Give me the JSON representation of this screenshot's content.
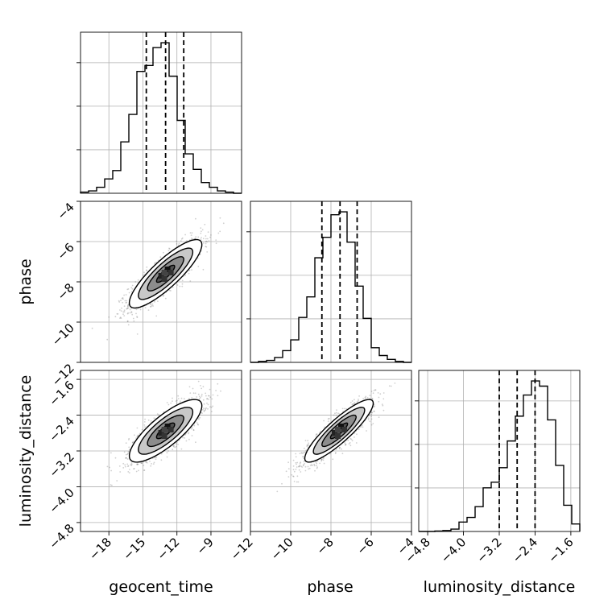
{
  "chart_data": {
    "type": "corner",
    "title": "",
    "parameters": [
      {
        "name": "geocent_time",
        "range": [
          -20.5,
          -6.3
        ],
        "ticks": [
          -18,
          -15,
          -12,
          -9
        ],
        "tick_labels": [
          "−18",
          "−15",
          "−12",
          "−9"
        ],
        "quantiles": [
          -14.7,
          -13.0,
          -11.4
        ],
        "histogram": {
          "bin_edges": [
            -20.5,
            -19.79,
            -19.08,
            -18.37,
            -17.66,
            -16.95,
            -16.24,
            -15.53,
            -14.82,
            -14.11,
            -13.4,
            -12.69,
            -11.98,
            -11.27,
            -10.56,
            -9.85,
            -9.14,
            -8.43,
            -7.72,
            -7.01,
            -6.3
          ],
          "counts": [
            0.01,
            0.02,
            0.05,
            0.12,
            0.19,
            0.43,
            0.66,
            1.02,
            1.07,
            1.22,
            1.26,
            0.98,
            0.61,
            0.33,
            0.2,
            0.09,
            0.05,
            0.02,
            0.01,
            0.0
          ]
        }
      },
      {
        "name": "phase",
        "range": [
          -12,
          -4
        ],
        "ticks": [
          -12,
          -10,
          -8,
          -6,
          -4
        ],
        "tick_labels": [
          "−12",
          "−10",
          "−8",
          "−6",
          "−4"
        ],
        "quantiles": [
          -8.45,
          -7.55,
          -6.7
        ],
        "histogram": {
          "bin_edges": [
            -12.0,
            -11.6,
            -11.2,
            -10.8,
            -10.4,
            -10.0,
            -9.6,
            -9.2,
            -8.8,
            -8.4,
            -8.0,
            -7.6,
            -7.2,
            -6.8,
            -6.4,
            -6.0,
            -5.6,
            -5.2,
            -4.8,
            -4.4,
            -4.0
          ],
          "counts": [
            0.0,
            0.01,
            0.02,
            0.05,
            0.12,
            0.23,
            0.46,
            0.67,
            1.07,
            1.28,
            1.51,
            1.54,
            1.23,
            0.78,
            0.45,
            0.15,
            0.07,
            0.03,
            0.01,
            0.0
          ]
        }
      },
      {
        "name": "luminosity_distance",
        "range": [
          -5.0,
          -1.4
        ],
        "ticks": [
          -4.8,
          -4.0,
          -3.2,
          -2.4,
          -1.6
        ],
        "tick_labels": [
          "−4.8",
          "−4.0",
          "−3.2",
          "−2.4",
          "−1.6"
        ],
        "quantiles": [
          -3.2,
          -2.8,
          -2.4
        ],
        "histogram": {
          "bin_edges": [
            -5.0,
            -4.82,
            -4.64,
            -4.46,
            -4.28,
            -4.1,
            -3.92,
            -3.74,
            -3.56,
            -3.38,
            -3.2,
            -3.02,
            -2.84,
            -2.66,
            -2.48,
            -2.3,
            -2.12,
            -1.94,
            -1.76,
            -1.58,
            -1.4
          ],
          "counts": [
            0.0,
            0.0,
            0.01,
            0.02,
            0.05,
            0.2,
            0.3,
            0.53,
            0.93,
            1.05,
            1.36,
            1.93,
            2.46,
            2.91,
            3.21,
            3.1,
            2.38,
            1.41,
            0.56,
            0.16
          ]
        }
      }
    ],
    "pairs": [
      {
        "x": "geocent_time",
        "y": "phase",
        "center": [
          -13.0,
          -7.6
        ],
        "sigma": [
          1.6,
          0.85
        ],
        "correlation": 0.85,
        "contour_levels_sigma": [
          0.5,
          1.0,
          1.5,
          2.0
        ]
      },
      {
        "x": "geocent_time",
        "y": "luminosity_distance",
        "center": [
          -13.0,
          -2.75
        ],
        "sigma": [
          1.6,
          0.35
        ],
        "correlation": 0.8,
        "contour_levels_sigma": [
          0.5,
          1.0,
          1.5,
          2.0
        ]
      },
      {
        "x": "phase",
        "y": "luminosity_distance",
        "center": [
          -7.6,
          -2.75
        ],
        "sigma": [
          0.85,
          0.35
        ],
        "correlation": 0.88,
        "contour_levels_sigma": [
          0.5,
          1.0,
          1.5,
          2.0
        ]
      }
    ],
    "grid": true
  },
  "labels": {
    "xlabel_0": "geocent_time",
    "xlabel_1": "phase",
    "xlabel_2": "luminosity_distance",
    "ylabel_1": "phase",
    "ylabel_2": "luminosity_distance"
  },
  "colors": {
    "line": "#000000",
    "grid": "#b0b0b0",
    "scatter": "#555555",
    "fill_levels": [
      "#ffffff",
      "#c8c8c8",
      "#8c8c8c",
      "#505050"
    ]
  }
}
